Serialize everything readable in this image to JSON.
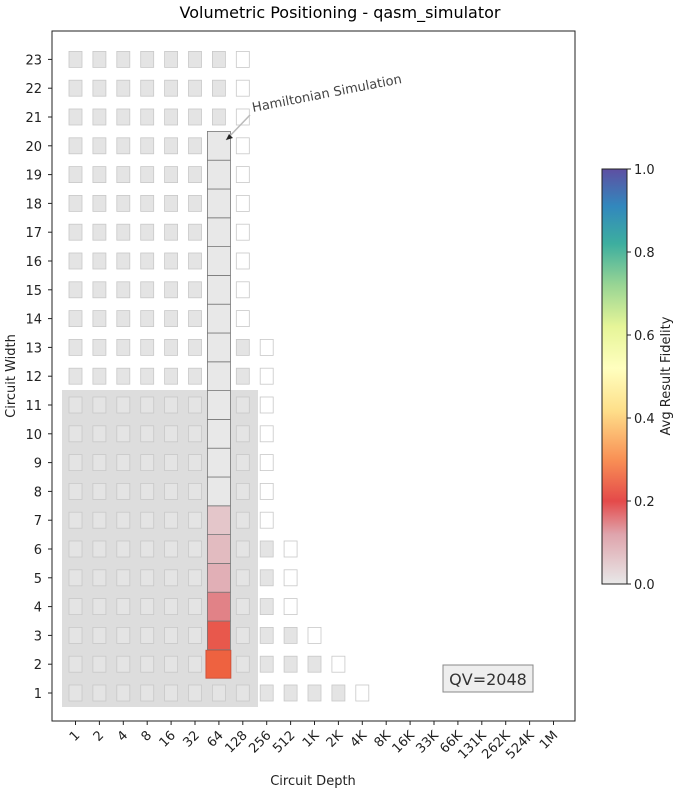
{
  "chart_data": {
    "type": "volumetric",
    "title": "Volumetric Positioning - qasm_simulator",
    "xlabel": "Circuit Depth",
    "ylabel": "Circuit Width",
    "x_ticks": [
      "1",
      "2",
      "4",
      "8",
      "16",
      "32",
      "64",
      "128",
      "256",
      "512",
      "1K",
      "2K",
      "4K",
      "8K",
      "16K",
      "33K",
      "66K",
      "131K",
      "262K",
      "524K",
      "1M"
    ],
    "y_ticks": [
      "1",
      "2",
      "3",
      "4",
      "5",
      "6",
      "7",
      "8",
      "9",
      "10",
      "11",
      "12",
      "13",
      "14",
      "15",
      "16",
      "17",
      "18",
      "19",
      "20",
      "21",
      "22",
      "23"
    ],
    "colorbar": {
      "label": "Avg Result Fidelity",
      "range": [
        0,
        1
      ],
      "ticks": [
        "0.0",
        "0.2",
        "0.4",
        "0.6",
        "0.8",
        "1.0"
      ],
      "colormap": "Spectral"
    },
    "qv_label": "QV=2048",
    "annotation": {
      "text": "Hamiltonian Simulation",
      "points_to": {
        "depth": "64",
        "width": 20
      }
    },
    "grid_footprint": [
      {
        "width": 1,
        "max_depth": "4K"
      },
      {
        "width": 2,
        "max_depth": "2K"
      },
      {
        "width": 3,
        "max_depth": "1K"
      },
      {
        "width": 4,
        "max_depth": "512"
      },
      {
        "width": 5,
        "max_depth": "512"
      },
      {
        "width": 6,
        "max_depth": "512"
      },
      {
        "width": 7,
        "max_depth": "256"
      },
      {
        "width": 8,
        "max_depth": "256"
      },
      {
        "width": 9,
        "max_depth": "256"
      },
      {
        "width": 10,
        "max_depth": "256"
      },
      {
        "width": 11,
        "max_depth": "256"
      },
      {
        "width": 12,
        "max_depth": "256"
      },
      {
        "width": 13,
        "max_depth": "256"
      },
      {
        "width": 14,
        "max_depth": "128"
      },
      {
        "width": 15,
        "max_depth": "128"
      },
      {
        "width": 16,
        "max_depth": "128"
      },
      {
        "width": 17,
        "max_depth": "128"
      },
      {
        "width": 18,
        "max_depth": "128"
      },
      {
        "width": 19,
        "max_depth": "128"
      },
      {
        "width": 20,
        "max_depth": "128"
      },
      {
        "width": 21,
        "max_depth": "128"
      },
      {
        "width": 22,
        "max_depth": "128"
      },
      {
        "width": 23,
        "max_depth": "128"
      }
    ],
    "qv_region": {
      "max_width": 11,
      "max_depth": "128"
    },
    "circuits": [
      {
        "name": "Hamiltonian Simulation",
        "depth": "64",
        "width": 2,
        "fidelity": 0.18,
        "emphasized": true
      },
      {
        "name": "Hamiltonian Simulation",
        "depth": "64",
        "width": 3,
        "fidelity": 0.22
      },
      {
        "name": "Hamiltonian Simulation",
        "depth": "64",
        "width": 4,
        "fidelity": 0.15
      },
      {
        "name": "Hamiltonian Simulation",
        "depth": "64",
        "width": 5,
        "fidelity": 0.1
      },
      {
        "name": "Hamiltonian Simulation",
        "depth": "64",
        "width": 6,
        "fidelity": 0.08
      },
      {
        "name": "Hamiltonian Simulation",
        "depth": "64",
        "width": 7,
        "fidelity": 0.06
      },
      {
        "name": "Hamiltonian Simulation",
        "depth": "64",
        "width": 8,
        "fidelity": 0.0
      },
      {
        "name": "Hamiltonian Simulation",
        "depth": "64",
        "width": 9,
        "fidelity": 0.0
      },
      {
        "name": "Hamiltonian Simulation",
        "depth": "64",
        "width": 10,
        "fidelity": 0.0
      },
      {
        "name": "Hamiltonian Simulation",
        "depth": "64",
        "width": 11,
        "fidelity": 0.0
      },
      {
        "name": "Hamiltonian Simulation",
        "depth": "64",
        "width": 12,
        "fidelity": 0.0
      },
      {
        "name": "Hamiltonian Simulation",
        "depth": "64",
        "width": 13,
        "fidelity": 0.0
      },
      {
        "name": "Hamiltonian Simulation",
        "depth": "64",
        "width": 14,
        "fidelity": 0.0
      },
      {
        "name": "Hamiltonian Simulation",
        "depth": "64",
        "width": 15,
        "fidelity": 0.0
      },
      {
        "name": "Hamiltonian Simulation",
        "depth": "64",
        "width": 16,
        "fidelity": 0.0
      },
      {
        "name": "Hamiltonian Simulation",
        "depth": "64",
        "width": 17,
        "fidelity": 0.0
      },
      {
        "name": "Hamiltonian Simulation",
        "depth": "64",
        "width": 18,
        "fidelity": 0.0
      },
      {
        "name": "Hamiltonian Simulation",
        "depth": "64",
        "width": 19,
        "fidelity": 0.0
      },
      {
        "name": "Hamiltonian Simulation",
        "depth": "64",
        "width": 20,
        "fidelity": 0.0
      }
    ]
  }
}
